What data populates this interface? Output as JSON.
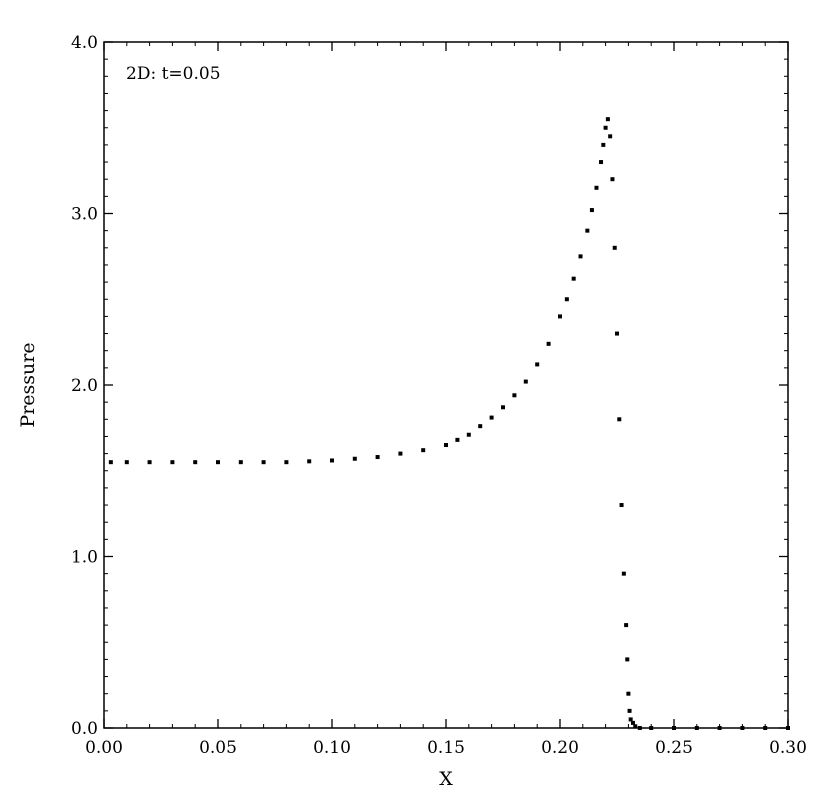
{
  "chart_data": {
    "type": "scatter",
    "annotation": "2D: t=0.05",
    "xlabel": "X",
    "ylabel": "Pressure",
    "xlim": [
      0.0,
      0.3
    ],
    "ylim": [
      0.0,
      4.0
    ],
    "x_ticks": [
      "0.00",
      "0.05",
      "0.10",
      "0.15",
      "0.20",
      "0.25",
      "0.30"
    ],
    "y_ticks": [
      "0.0",
      "1.0",
      "2.0",
      "3.0",
      "4.0"
    ],
    "x_tick_values": [
      0.0,
      0.05,
      0.1,
      0.15,
      0.2,
      0.25,
      0.3
    ],
    "y_tick_values": [
      0.0,
      1.0,
      2.0,
      3.0,
      4.0
    ],
    "marker_color": "#000000",
    "grid": false,
    "series": [
      {
        "x": [
          0.003,
          0.01,
          0.02,
          0.03,
          0.04,
          0.05,
          0.06,
          0.07,
          0.08,
          0.09,
          0.1,
          0.11,
          0.12,
          0.13,
          0.14,
          0.15,
          0.155,
          0.16,
          0.165,
          0.17,
          0.175,
          0.18,
          0.185,
          0.19,
          0.195,
          0.2,
          0.203,
          0.206,
          0.209,
          0.212,
          0.214,
          0.216,
          0.218,
          0.219,
          0.22,
          0.221,
          0.222,
          0.223,
          0.224,
          0.225,
          0.226,
          0.227,
          0.228,
          0.229,
          0.2295,
          0.23,
          0.2305,
          0.231,
          0.232,
          0.233,
          0.235,
          0.24,
          0.25,
          0.26,
          0.27,
          0.28,
          0.29,
          0.3
        ],
        "y": [
          1.55,
          1.55,
          1.55,
          1.55,
          1.55,
          1.55,
          1.55,
          1.55,
          1.55,
          1.555,
          1.56,
          1.57,
          1.58,
          1.6,
          1.62,
          1.65,
          1.68,
          1.71,
          1.76,
          1.81,
          1.87,
          1.94,
          2.02,
          2.12,
          2.24,
          2.4,
          2.5,
          2.62,
          2.75,
          2.9,
          3.02,
          3.15,
          3.3,
          3.4,
          3.5,
          3.55,
          3.45,
          3.2,
          2.8,
          2.3,
          1.8,
          1.3,
          0.9,
          0.6,
          0.4,
          0.2,
          0.1,
          0.05,
          0.03,
          0.01,
          0.0,
          0.0,
          0.0,
          0.0,
          0.0,
          0.0,
          0.0,
          0.0
        ]
      }
    ]
  }
}
